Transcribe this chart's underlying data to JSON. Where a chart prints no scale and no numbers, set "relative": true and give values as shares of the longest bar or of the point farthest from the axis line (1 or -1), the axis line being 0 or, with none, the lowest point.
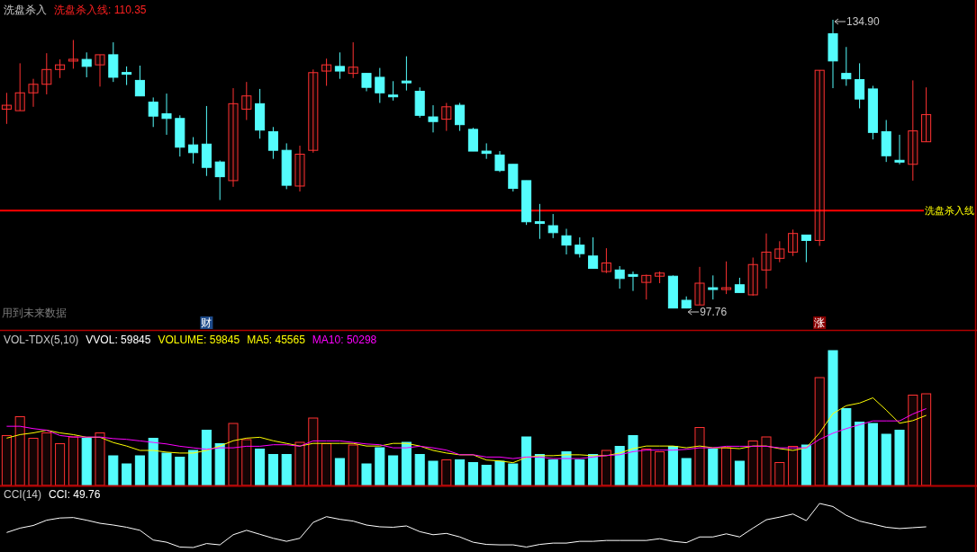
{
  "chart_data": [
    {
      "type": "candlestick",
      "title": "洗盘杀入",
      "subtitle": "洗盘杀入线: 110.35",
      "categories": [
        null,
        null,
        null,
        null,
        null,
        null,
        null,
        null,
        null,
        null,
        null,
        null,
        null,
        null,
        null,
        null,
        null,
        null,
        null,
        null,
        null,
        null,
        null,
        null,
        null,
        null,
        null,
        null,
        null,
        null,
        null,
        null,
        null,
        null,
        null,
        null,
        null,
        null,
        null,
        null,
        null,
        null,
        null,
        null,
        null,
        null,
        null,
        null,
        null,
        null,
        null,
        null,
        null,
        null,
        null,
        null,
        null,
        null,
        null,
        null,
        null,
        null,
        null,
        null,
        null,
        null,
        null,
        null,
        null,
        null
      ],
      "ohlc": [
        [
          123.4,
          125.5,
          121.5,
          123.9
        ],
        [
          123.2,
          129.3,
          123.2,
          125.5
        ],
        [
          125.5,
          127.3,
          123.7,
          126.6
        ],
        [
          126.6,
          130.6,
          125.3,
          128.5
        ],
        [
          128.5,
          129.8,
          127.4,
          129.1
        ],
        [
          129.7,
          132.3,
          128.6,
          129.7
        ],
        [
          129.8,
          130.7,
          127.5,
          128.9
        ],
        [
          129.1,
          130.4,
          126.3,
          130.4
        ],
        [
          130.4,
          132.0,
          126.9,
          127.5
        ],
        [
          128.0,
          128.9,
          126.5,
          128.0
        ],
        [
          127.1,
          129.0,
          125.1,
          125.1
        ],
        [
          124.3,
          124.9,
          121.1,
          122.5
        ],
        [
          122.8,
          125.4,
          120.1,
          122.2
        ],
        [
          122.2,
          122.6,
          117.3,
          118.5
        ],
        [
          118.8,
          119.8,
          116.4,
          117.8
        ],
        [
          118.9,
          123.8,
          114.8,
          115.9
        ],
        [
          116.6,
          116.8,
          111.7,
          114.7
        ],
        [
          114.2,
          126.1,
          113.4,
          124.1
        ],
        [
          123.4,
          126.9,
          122.0,
          125.1
        ],
        [
          124.1,
          126.0,
          119.6,
          120.7
        ],
        [
          120.5,
          121.1,
          117.0,
          118.1
        ],
        [
          118.1,
          119.0,
          113.1,
          113.6
        ],
        [
          113.5,
          118.7,
          112.8,
          117.6
        ],
        [
          118.1,
          128.5,
          117.8,
          128.1
        ],
        [
          128.3,
          129.9,
          126.4,
          129.1
        ],
        [
          128.9,
          130.7,
          127.3,
          128.3
        ],
        [
          128.0,
          132.0,
          127.4,
          128.8
        ],
        [
          128.0,
          128.0,
          125.7,
          126.2
        ],
        [
          127.5,
          128.7,
          124.2,
          125.5
        ],
        [
          125.1,
          127.0,
          124.5,
          125.1
        ],
        [
          126.9,
          130.2,
          125.8,
          126.9
        ],
        [
          125.7,
          126.2,
          122.3,
          122.6
        ],
        [
          122.4,
          123.9,
          120.4,
          121.8
        ],
        [
          122.1,
          124.2,
          120.6,
          123.7
        ],
        [
          123.9,
          124.2,
          120.6,
          121.4
        ],
        [
          120.8,
          121.0,
          118.0,
          118.0
        ],
        [
          118.0,
          119.0,
          117.0,
          117.7
        ],
        [
          117.5,
          118.0,
          115.3,
          115.5
        ],
        [
          116.3,
          116.3,
          112.8,
          113.2
        ],
        [
          114.2,
          114.2,
          108.5,
          108.9
        ],
        [
          108.8,
          111.2,
          106.7,
          108.8
        ],
        [
          108.4,
          109.9,
          106.8,
          107.5
        ],
        [
          107.1,
          108.0,
          104.7,
          105.9
        ],
        [
          105.9,
          106.9,
          104.3,
          104.8
        ],
        [
          104.5,
          106.9,
          102.9,
          102.9
        ],
        [
          102.5,
          105.5,
          102.3,
          103.6
        ],
        [
          102.7,
          103.2,
          100.3,
          101.6
        ],
        [
          102.0,
          102.5,
          100.0,
          102.0
        ],
        [
          101.1,
          102.1,
          98.9,
          102.0
        ],
        [
          101.9,
          102.5,
          101.0,
          102.3
        ],
        [
          101.9,
          102.0,
          97.8,
          97.8
        ],
        [
          98.8,
          99.3,
          97.76,
          97.8
        ],
        [
          98.2,
          103.1,
          98.2,
          101.0
        ],
        [
          100.3,
          102.0,
          98.9,
          100.3
        ],
        [
          100.3,
          103.8,
          99.6,
          100.3
        ],
        [
          100.8,
          101.7,
          99.8,
          99.8
        ],
        [
          99.5,
          104.3,
          99.4,
          103.4
        ],
        [
          102.7,
          107.4,
          100.3,
          105.0
        ],
        [
          104.2,
          106.4,
          103.7,
          105.4
        ],
        [
          105.0,
          107.9,
          104.5,
          107.4
        ],
        [
          107.2,
          107.2,
          103.7,
          106.5
        ],
        [
          106.5,
          128.4,
          105.8,
          128.4
        ],
        [
          133.1,
          134.9,
          126.1,
          129.6
        ],
        [
          128.0,
          131.4,
          126.4,
          127.3
        ],
        [
          127.2,
          129.3,
          123.5,
          124.7
        ],
        [
          126.0,
          126.4,
          119.5,
          120.4
        ],
        [
          120.5,
          122.0,
          116.6,
          117.4
        ],
        [
          116.8,
          120.1,
          116.3,
          116.6
        ],
        [
          116.3,
          127.1,
          114.2,
          120.6
        ],
        [
          119.2,
          126.2,
          119.2,
          122.7
        ]
      ],
      "colors": [
        "#ff3232",
        "#ff3232",
        "#ff3232",
        "#ff3232",
        "#ff3232",
        "#ff3232",
        "#54fcfc",
        "#ff3232",
        "#54fcfc",
        "#54fcfc",
        "#54fcfc",
        "#54fcfc",
        "#54fcfc",
        "#54fcfc",
        "#54fcfc",
        "#54fcfc",
        "#54fcfc",
        "#ff3232",
        "#ff3232",
        "#54fcfc",
        "#54fcfc",
        "#54fcfc",
        "#ff3232",
        "#ff3232",
        "#ff3232",
        "#54fcfc",
        "#ff3232",
        "#54fcfc",
        "#54fcfc",
        "#54fcfc",
        "#54fcfc",
        "#54fcfc",
        "#54fcfc",
        "#ff3232",
        "#54fcfc",
        "#54fcfc",
        "#54fcfc",
        "#54fcfc",
        "#54fcfc",
        "#54fcfc",
        "#54fcfc",
        "#54fcfc",
        "#54fcfc",
        "#54fcfc",
        "#54fcfc",
        "#ff3232",
        "#54fcfc",
        "#54fcfc",
        "#ff3232",
        "#ff3232",
        "#54fcfc",
        "#54fcfc",
        "#ff3232",
        "#54fcfc",
        "#ff3232",
        "#54fcfc",
        "#ff3232",
        "#ff3232",
        "#ff3232",
        "#ff3232",
        "#54fcfc",
        "#ff3232",
        "#54fcfc",
        "#54fcfc",
        "#54fcfc",
        "#54fcfc",
        "#54fcfc",
        "#54fcfc",
        "#ff3232",
        "#ff3232"
      ],
      "ref_lines": [
        {
          "axis": "y",
          "value": 110.35,
          "label": "洗盘杀入线",
          "color": "#ff0000"
        }
      ],
      "annotations": [
        "134.90",
        "97.76",
        "用到未来数据",
        "财",
        "涨"
      ]
    },
    {
      "type": "bar",
      "relative": true,
      "title": "VOL-TDX(5,10)",
      "subtitle": "VVOL: 59845",
      "categories": [
        null,
        null,
        null,
        null,
        null,
        null,
        null,
        null,
        null,
        null,
        null,
        null,
        null,
        null,
        null,
        null,
        null,
        null,
        null,
        null,
        null,
        null,
        null,
        null,
        null,
        null,
        null,
        null,
        null,
        null,
        null,
        null,
        null,
        null,
        null,
        null,
        null,
        null,
        null,
        null,
        null,
        null,
        null,
        null,
        null,
        null,
        null,
        null,
        null,
        null,
        null,
        null,
        null,
        null,
        null,
        null,
        null,
        null,
        null,
        null,
        null,
        null,
        null,
        null,
        null,
        null,
        null,
        null,
        null,
        null
      ],
      "series": [
        {
          "type": "bar",
          "colors": [
            "#ff3232",
            "#ff3232",
            "#ff3232",
            "#ff3232",
            "#ff3232",
            "#ff3232",
            "#54fcfc",
            "#ff3232",
            "#54fcfc",
            "#54fcfc",
            "#54fcfc",
            "#54fcfc",
            "#54fcfc",
            "#54fcfc",
            "#54fcfc",
            "#54fcfc",
            "#54fcfc",
            "#ff3232",
            "#ff3232",
            "#54fcfc",
            "#54fcfc",
            "#54fcfc",
            "#ff3232",
            "#ff3232",
            "#ff3232",
            "#54fcfc",
            "#ff3232",
            "#54fcfc",
            "#54fcfc",
            "#54fcfc",
            "#54fcfc",
            "#54fcfc",
            "#54fcfc",
            "#ff3232",
            "#54fcfc",
            "#54fcfc",
            "#54fcfc",
            "#54fcfc",
            "#54fcfc",
            "#54fcfc",
            "#54fcfc",
            "#54fcfc",
            "#54fcfc",
            "#54fcfc",
            "#54fcfc",
            "#ff3232",
            "#54fcfc",
            "#54fcfc",
            "#ff3232",
            "#ff3232",
            "#54fcfc",
            "#54fcfc",
            "#ff3232",
            "#54fcfc",
            "#ff3232",
            "#54fcfc",
            "#ff3232",
            "#ff3232",
            "#ff3232",
            "#ff3232",
            "#54fcfc",
            "#ff3232",
            "#54fcfc",
            "#54fcfc",
            "#54fcfc",
            "#54fcfc",
            "#54fcfc",
            "#54fcfc",
            "#ff3232",
            "#ff3232"
          ],
          "values": [
            0.37,
            0.51,
            0.35,
            0.39,
            0.31,
            0.36,
            0.35,
            0.39,
            0.22,
            0.16,
            0.22,
            0.35,
            0.24,
            0.21,
            0.26,
            0.41,
            0.31,
            0.46,
            0.34,
            0.27,
            0.23,
            0.23,
            0.32,
            0.5,
            0.31,
            0.2,
            0.3,
            0.16,
            0.28,
            0.22,
            0.32,
            0.23,
            0.18,
            0.19,
            0.19,
            0.17,
            0.15,
            0.18,
            0.16,
            0.36,
            0.23,
            0.19,
            0.25,
            0.19,
            0.23,
            0.26,
            0.29,
            0.37,
            0.27,
            0.25,
            0.29,
            0.2,
            0.43,
            0.27,
            0.28,
            0.18,
            0.33,
            0.36,
            0.17,
            0.29,
            0.3,
            0.8,
            1,
            0.57,
            0.47,
            0.46,
            0.38,
            0.41,
            0.67,
            0.68
          ]
        }
      ],
      "annotations": [
        "VOLUME: 59845"
      ]
    },
    {
      "type": "line",
      "relative": true,
      "categories": [
        null,
        null,
        null,
        null,
        null,
        null,
        null,
        null,
        null,
        null,
        null,
        null,
        null,
        null,
        null,
        null,
        null,
        null,
        null,
        null,
        null,
        null,
        null,
        null,
        null,
        null,
        null,
        null,
        null,
        null,
        null,
        null,
        null,
        null,
        null,
        null,
        null,
        null,
        null,
        null,
        null,
        null,
        null,
        null,
        null,
        null,
        null,
        null,
        null,
        null,
        null,
        null,
        null,
        null,
        null,
        null,
        null,
        null,
        null,
        null,
        null,
        null,
        null,
        null,
        null,
        null,
        null,
        null,
        null,
        null
      ],
      "series": [
        {
          "color": "#ffff00",
          "values": [
            0.54,
            0.58,
            0.6,
            0.63,
            0.6,
            0.58,
            0.55,
            0.55,
            0.49,
            0.45,
            0.4,
            0.4,
            0.38,
            0.37,
            0.37,
            0.4,
            0.45,
            0.51,
            0.54,
            0.55,
            0.51,
            0.48,
            0.45,
            0.48,
            0.48,
            0.48,
            0.48,
            0.45,
            0.45,
            0.48,
            0.48,
            0.45,
            0.4,
            0.37,
            0.35,
            0.35,
            0.29,
            0.28,
            0.26,
            0.32,
            0.34,
            0.34,
            0.35,
            0.35,
            0.34,
            0.34,
            0.37,
            0.42,
            0.45,
            0.45,
            0.45,
            0.43,
            0.45,
            0.43,
            0.43,
            0.42,
            0.45,
            0.45,
            0.42,
            0.4,
            0.43,
            0.6,
            0.82,
            0.91,
            0.94,
            1,
            0.86,
            0.71,
            0.74,
            0.8
          ]
        }
      ],
      "annotations": [
        "MA5: 45565"
      ]
    },
    {
      "type": "line",
      "relative": true,
      "categories": [
        null,
        null,
        null,
        null,
        null,
        null,
        null,
        null,
        null,
        null,
        null,
        null,
        null,
        null,
        null,
        null,
        null,
        null,
        null,
        null,
        null,
        null,
        null,
        null,
        null,
        null,
        null,
        null,
        null,
        null,
        null,
        null,
        null,
        null,
        null,
        null,
        null,
        null,
        null,
        null,
        null,
        null,
        null,
        null,
        null,
        null,
        null,
        null,
        null,
        null,
        null,
        null,
        null,
        null,
        null,
        null,
        null,
        null,
        null,
        null,
        null,
        null,
        null,
        null,
        null,
        null,
        null,
        null,
        null,
        null
      ],
      "series": [
        {
          "color": "#ff00ff",
          "values": [
            0.77,
            0.77,
            0.74,
            0.72,
            0.65,
            0.63,
            0.63,
            0.63,
            0.61,
            0.6,
            0.58,
            0.56,
            0.54,
            0.51,
            0.49,
            0.47,
            0.49,
            0.49,
            0.51,
            0.51,
            0.53,
            0.53,
            0.51,
            0.58,
            0.58,
            0.58,
            0.56,
            0.54,
            0.53,
            0.49,
            0.49,
            0.51,
            0.49,
            0.46,
            0.4,
            0.4,
            0.37,
            0.37,
            0.35,
            0.37,
            0.37,
            0.35,
            0.35,
            0.35,
            0.37,
            0.39,
            0.4,
            0.44,
            0.46,
            0.46,
            0.46,
            0.47,
            0.49,
            0.49,
            0.51,
            0.51,
            0.51,
            0.51,
            0.49,
            0.49,
            0.49,
            0.6,
            0.68,
            0.74,
            0.79,
            0.84,
            0.84,
            0.84,
            0.93,
            1
          ]
        }
      ],
      "annotations": [
        "MA10: 50298"
      ]
    },
    {
      "type": "line",
      "relative": true,
      "title": "CCI(14)",
      "subtitle": "CCI: 49.76",
      "categories": [
        null,
        null,
        null,
        null,
        null,
        null,
        null,
        null,
        null,
        null,
        null,
        null,
        null,
        null,
        null,
        null,
        null,
        null,
        null,
        null,
        null,
        null,
        null,
        null,
        null,
        null,
        null,
        null,
        null,
        null,
        null,
        null,
        null,
        null,
        null,
        null,
        null,
        null,
        null,
        null,
        null,
        null,
        null,
        null,
        null,
        null,
        null,
        null,
        null,
        null,
        null,
        null,
        null,
        null,
        null,
        null,
        null,
        null,
        null,
        null,
        null,
        null,
        null,
        null,
        null,
        null,
        null,
        null,
        null,
        null
      ],
      "series": [
        {
          "color": "#ffffff",
          "values": [
            0.34,
            0.44,
            0.5,
            0.62,
            0.67,
            0.68,
            0.62,
            0.55,
            0.51,
            0.46,
            0.39,
            0.17,
            0.12,
            0.01,
            0,
            0.09,
            0.06,
            0.29,
            0.39,
            0.3,
            0.21,
            0.14,
            0.21,
            0.57,
            0.7,
            0.64,
            0.6,
            0.51,
            0.47,
            0.46,
            0.49,
            0.36,
            0.29,
            0.32,
            0.24,
            0.12,
            0.07,
            0.06,
            0.06,
            0.01,
            0.07,
            0.1,
            0.1,
            0.14,
            0.14,
            0.16,
            0.16,
            0.16,
            0.16,
            0.2,
            0.14,
            0.11,
            0.24,
            0.24,
            0.31,
            0.24,
            0.44,
            0.63,
            0.69,
            0.76,
            0.61,
            1,
            0.93,
            0.73,
            0.6,
            0.53,
            0.46,
            0.43,
            0.45,
            0.47
          ]
        }
      ]
    }
  ]
}
